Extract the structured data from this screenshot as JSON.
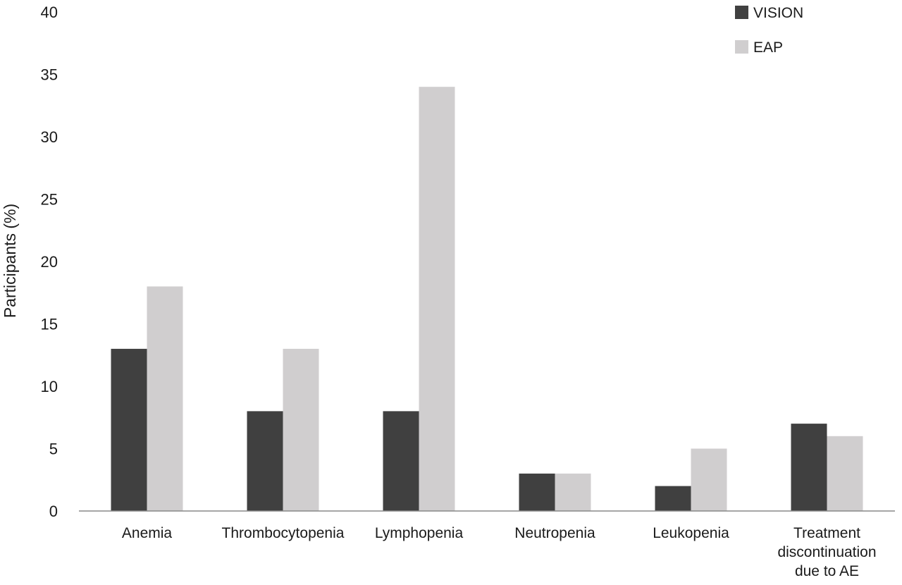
{
  "chart_data": {
    "type": "bar",
    "categories": [
      [
        "Anemia"
      ],
      [
        "Thrombocytopenia"
      ],
      [
        "Lymphopenia"
      ],
      [
        "Neutropenia"
      ],
      [
        "Leukopenia"
      ],
      [
        "Treatment",
        "discontinuation",
        "due to AE"
      ]
    ],
    "series": [
      {
        "name": "VISION",
        "color": "#404040",
        "values": [
          13,
          8,
          8,
          3,
          2,
          7
        ]
      },
      {
        "name": "EAP",
        "color": "#d0cecf",
        "values": [
          18,
          13,
          34,
          3,
          5,
          6
        ]
      }
    ],
    "title": "",
    "xlabel": "",
    "ylabel": "Participants (%)",
    "ylim": [
      0,
      40
    ],
    "yticks": [
      0,
      5,
      10,
      15,
      20,
      25,
      30,
      35,
      40
    ],
    "grid": false,
    "legend_position": "top-right"
  }
}
